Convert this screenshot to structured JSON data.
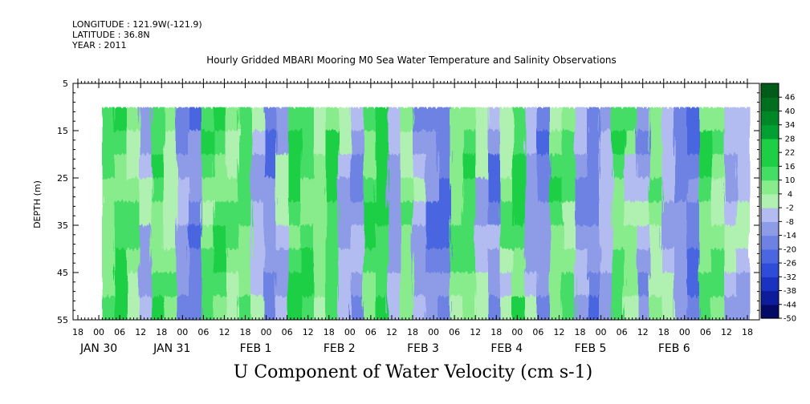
{
  "header": {
    "longitude": "LONGITUDE : 121.9W(-121.9)",
    "latitude": "LATITUDE : 36.8N",
    "year": "YEAR : 2011",
    "title": "Hourly Gridded MBARI Mooring M0 Sea Water Temperature and Salinity Observations"
  },
  "chart_data": {
    "type": "heatmap",
    "title": "Hourly Gridded MBARI Mooring M0 Sea Water Temperature and Salinity Observations",
    "xlabel": "",
    "ylabel": "DEPTH (m)",
    "variable_label": "U Component of Water Velocity (cm s-1)",
    "x_hour_ticks": [
      "18",
      "00",
      "06",
      "12",
      "18",
      "00",
      "06",
      "12",
      "18",
      "00",
      "06",
      "12",
      "18",
      "00",
      "06",
      "12",
      "18",
      "00",
      "06",
      "12",
      "18",
      "00",
      "06",
      "12",
      "18",
      "00",
      "06",
      "12",
      "18",
      "00",
      "06",
      "12",
      "18"
    ],
    "x_day_labels": [
      {
        "label": "JAN 30",
        "tick_index": 1
      },
      {
        "label": "JAN 31",
        "tick_index": 4.5
      },
      {
        "label": "FEB  1",
        "tick_index": 8.5
      },
      {
        "label": "FEB  2",
        "tick_index": 12.5
      },
      {
        "label": "FEB  3",
        "tick_index": 16.5
      },
      {
        "label": "FEB  4",
        "tick_index": 20.5
      },
      {
        "label": "FEB  5",
        "tick_index": 24.5
      },
      {
        "label": "FEB  6",
        "tick_index": 28.5
      }
    ],
    "y_ticks": [
      5,
      15,
      25,
      35,
      45,
      55
    ],
    "ylim": [
      5,
      55
    ],
    "y_inverted": true,
    "data_depth_range": [
      10,
      55
    ],
    "colorbar_levels": [
      46,
      40,
      34,
      28,
      22,
      16,
      10,
      4,
      -2,
      -8,
      -14,
      -20,
      -26,
      -32,
      -38,
      -44,
      -50
    ],
    "colorbar_range": [
      -50,
      52
    ],
    "colors": {
      "strong_positive": "#00bb33",
      "positive": "#33dd55",
      "weak_positive": "#99ee99",
      "weak_negative": "#aab4ee",
      "negative": "#7f8ee6",
      "strong_negative": "#4a66e0"
    },
    "column_bands_approx_u_cm_s": [
      {
        "time_index": 0,
        "u": 10
      },
      {
        "time_index": 1,
        "u": 14
      },
      {
        "time_index": 2,
        "u": 6
      },
      {
        "time_index": 3,
        "u": -6
      },
      {
        "time_index": 4,
        "u": 12
      },
      {
        "time_index": 5,
        "u": 4
      },
      {
        "time_index": 6,
        "u": -10
      },
      {
        "time_index": 7,
        "u": -16
      },
      {
        "time_index": 8,
        "u": 10
      },
      {
        "time_index": 9,
        "u": 14
      },
      {
        "time_index": 10,
        "u": 6
      },
      {
        "time_index": 11,
        "u": 12
      },
      {
        "time_index": 12,
        "u": -6
      },
      {
        "time_index": 13,
        "u": -14
      },
      {
        "time_index": 14,
        "u": -4
      },
      {
        "time_index": 15,
        "u": 16
      },
      {
        "time_index": 16,
        "u": 12
      },
      {
        "time_index": 17,
        "u": 6
      },
      {
        "time_index": 18,
        "u": 14
      },
      {
        "time_index": 19,
        "u": -6
      },
      {
        "time_index": 20,
        "u": -12
      },
      {
        "time_index": 21,
        "u": 12
      },
      {
        "time_index": 22,
        "u": 18
      },
      {
        "time_index": 23,
        "u": -8
      },
      {
        "time_index": 24,
        "u": 6
      },
      {
        "time_index": 25,
        "u": -8
      },
      {
        "time_index": 26,
        "u": -16
      },
      {
        "time_index": 27,
        "u": -20
      },
      {
        "time_index": 28,
        "u": 8
      },
      {
        "time_index": 29,
        "u": 12
      },
      {
        "time_index": 30,
        "u": -4
      },
      {
        "time_index": 31,
        "u": -14
      },
      {
        "time_index": 32,
        "u": 4
      },
      {
        "time_index": 33,
        "u": 14
      },
      {
        "time_index": 34,
        "u": -8
      },
      {
        "time_index": 35,
        "u": -14
      },
      {
        "time_index": 36,
        "u": 10
      },
      {
        "time_index": 37,
        "u": 8
      },
      {
        "time_index": 38,
        "u": -10
      },
      {
        "time_index": 39,
        "u": -16
      },
      {
        "time_index": 40,
        "u": -6
      },
      {
        "time_index": 41,
        "u": 10
      },
      {
        "time_index": 42,
        "u": 4
      },
      {
        "time_index": 43,
        "u": -8
      },
      {
        "time_index": 44,
        "u": 6
      },
      {
        "time_index": 45,
        "u": -6
      },
      {
        "time_index": 46,
        "u": -14
      },
      {
        "time_index": 47,
        "u": -18
      },
      {
        "time_index": 48,
        "u": 12
      },
      {
        "time_index": 49,
        "u": 6
      },
      {
        "time_index": 50,
        "u": -6
      },
      {
        "time_index": 51,
        "u": -4
      }
    ]
  }
}
